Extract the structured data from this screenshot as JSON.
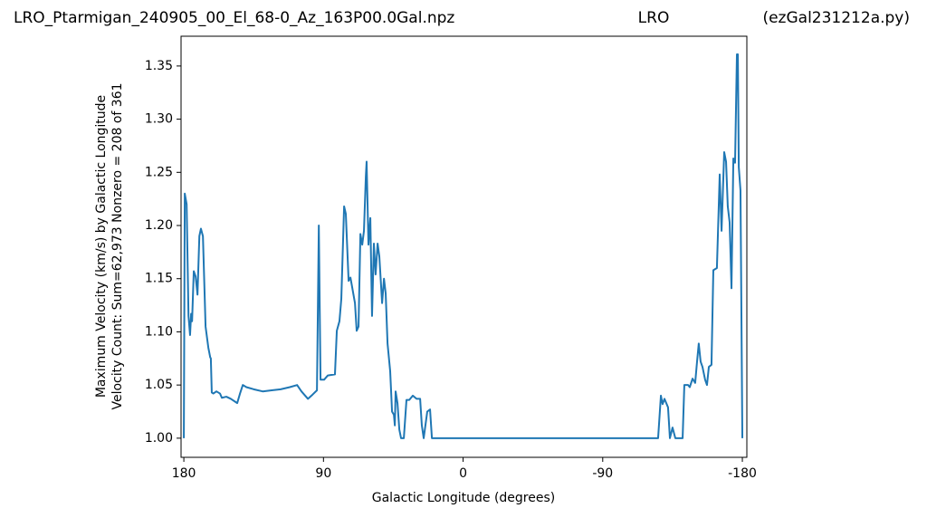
{
  "chart_data": {
    "type": "line",
    "title": "LRO_Ptarmigan_240905_00_El_68-0_Az_163P00.0Gal.npz",
    "title_center": "LRO",
    "title_right": "(ezGal231212a.py)",
    "x_label": "Galactic Longitude (degrees)",
    "y_label": [
      "Maximum Velocity (km/s) by Galactic Longitude",
      "Velocity Count: Sum=62,973 Nonzero = 208 of 361"
    ],
    "xlim": [
      181.8,
      -182.9
    ],
    "ylim": [
      0.982,
      1.378
    ],
    "xticks": [
      180,
      90,
      0,
      -90,
      -180
    ],
    "yticks": [
      {
        "value": 1.0,
        "label": "1.00"
      },
      1.05,
      {
        "value": 1.1,
        "label": "1.10"
      },
      1.15,
      {
        "value": 1.2,
        "label": "1.20"
      },
      1.25,
      {
        "value": 1.3,
        "label": "1.30"
      },
      1.35
    ],
    "grid": false,
    "series": [
      {
        "name": "max velocity",
        "color": "#1f77b4",
        "x": [
          180,
          179.4,
          178.2,
          177,
          176,
          175.3,
          174.7,
          173.6,
          172.4,
          171.2,
          170,
          169,
          167.7,
          166,
          164.2,
          163,
          162.6,
          162,
          161,
          159,
          156.7,
          155.5,
          152.6,
          149.7,
          145.6,
          143.8,
          142,
          139.7,
          135,
          129.2,
          123.4,
          117.6,
          111.7,
          107,
          104.2,
          100,
          97,
          94.2,
          93,
          91.9,
          89.6,
          87.2,
          82.6,
          81.4,
          79.7,
          78.5,
          76.7,
          75.6,
          73.8,
          72.6,
          69.7,
          68.6,
          67.4,
          66.2,
          65,
          63.9,
          62.7,
          62.2,
          61,
          59.8,
          58.7,
          57.5,
          56.4,
          55.1,
          54,
          52.2,
          51,
          49.9,
          48.7,
          47,
          45.8,
          44.6,
          44,
          43.5,
          42.3,
          41.1,
          40,
          38.2,
          36.5,
          34.7,
          32.4,
          30,
          27.7,
          26.6,
          25.4,
          23.1,
          21.3,
          20.1,
          -125.7,
          -127.5,
          -128.6,
          -129.8,
          -132.1,
          -133.3,
          -135,
          -136.8,
          -141.5,
          -142.6,
          -145,
          -146.1,
          -147.9,
          -149.6,
          -150.8,
          -151.9,
          -153.1,
          -154.3,
          -156,
          -157.2,
          -158.4,
          -160.1,
          -161.3,
          -163.6,
          -165.4,
          -166.6,
          -168.3,
          -169.5,
          -170.6,
          -171.8,
          -173,
          -174.2,
          -175.3,
          -176.5,
          -177.1,
          -177.7,
          -178.8,
          -180
        ],
        "values": [
          1.0,
          1.23,
          1.22,
          1.115,
          1.097,
          1.117,
          1.11,
          1.157,
          1.152,
          1.135,
          1.19,
          1.197,
          1.19,
          1.105,
          1.085,
          1.076,
          1.075,
          1.043,
          1.042,
          1.044,
          1.042,
          1.038,
          1.039,
          1.037,
          1.033,
          1.042,
          1.05,
          1.048,
          1.046,
          1.044,
          1.045,
          1.046,
          1.048,
          1.05,
          1.044,
          1.037,
          1.041,
          1.045,
          1.2,
          1.055,
          1.055,
          1.059,
          1.06,
          1.101,
          1.11,
          1.131,
          1.218,
          1.211,
          1.148,
          1.151,
          1.127,
          1.101,
          1.105,
          1.192,
          1.182,
          1.195,
          1.246,
          1.26,
          1.182,
          1.207,
          1.115,
          1.183,
          1.154,
          1.183,
          1.171,
          1.127,
          1.15,
          1.136,
          1.089,
          1.063,
          1.025,
          1.022,
          1.012,
          1.044,
          1.033,
          1.008,
          1.0,
          1.0,
          1.036,
          1.036,
          1.04,
          1.037,
          1.037,
          1.012,
          1.0,
          1.025,
          1.027,
          1.0,
          1.0,
          1.04,
          1.032,
          1.037,
          1.029,
          1.0,
          1.01,
          1.0,
          1.0,
          1.05,
          1.05,
          1.048,
          1.056,
          1.052,
          1.072,
          1.089,
          1.072,
          1.067,
          1.055,
          1.05,
          1.067,
          1.069,
          1.158,
          1.16,
          1.248,
          1.195,
          1.269,
          1.26,
          1.218,
          1.203,
          1.141,
          1.263,
          1.259,
          1.361,
          1.361,
          1.255,
          1.233,
          1.0
        ]
      }
    ]
  }
}
